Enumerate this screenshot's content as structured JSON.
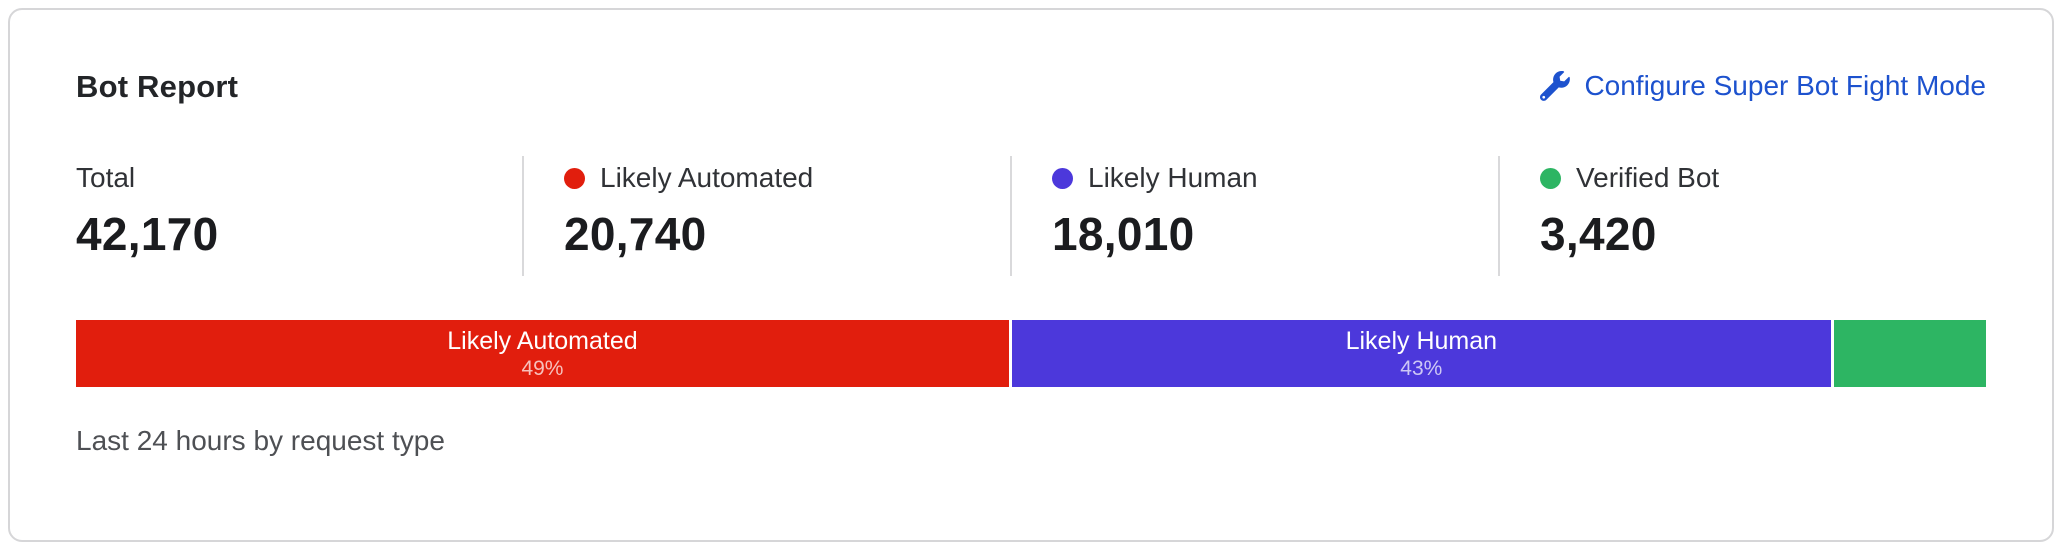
{
  "card": {
    "title": "Bot Report",
    "action": {
      "label": "Configure Super Bot Fight Mode",
      "icon": "wrench-icon",
      "color": "#1d52ce"
    },
    "footer": "Last 24 hours by request type"
  },
  "stats": [
    {
      "label": "Total",
      "value": "42,170",
      "dot_color": null
    },
    {
      "label": "Likely Automated",
      "value": "20,740",
      "dot_color": "#e11e0d"
    },
    {
      "label": "Likely Human",
      "value": "18,010",
      "dot_color": "#4c38db"
    },
    {
      "label": "Verified Bot",
      "value": "3,420",
      "dot_color": "#2db563"
    }
  ],
  "chart_data": {
    "type": "bar",
    "stacked": true,
    "orientation": "horizontal",
    "title": "Bot Report",
    "caption": "Last 24 hours by request type",
    "total": 42170,
    "segments": [
      {
        "name": "Likely Automated",
        "value": 20740,
        "percent": 49,
        "percent_label": "49%",
        "label_visible": true,
        "color": "#e11e0d"
      },
      {
        "name": "Likely Human",
        "value": 18010,
        "percent": 43,
        "percent_label": "43%",
        "label_visible": true,
        "color": "#4c38db"
      },
      {
        "name": "Verified Bot",
        "value": 3420,
        "percent": 8,
        "percent_label": "",
        "label_visible": false,
        "color": "#2db563"
      }
    ]
  },
  "colors": {
    "link_blue": "#1d52ce",
    "likely_automated_red": "#e11e0d",
    "likely_human_indigo": "#4c38db",
    "verified_bot_green": "#2db563",
    "card_border": "#d6d6d8",
    "divider": "#d9d9db"
  }
}
